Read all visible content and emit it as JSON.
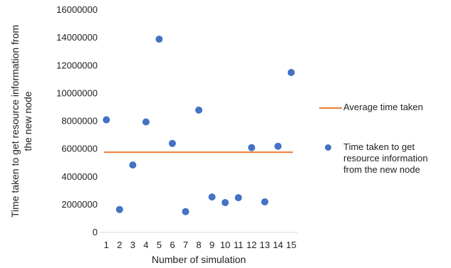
{
  "chart_data": {
    "type": "scatter",
    "xlabel": "Number of simulation",
    "ylabel_lines": [
      "Time taken to get resource information from",
      "the new node"
    ],
    "ylim": [
      0,
      16000000
    ],
    "yticks": [
      0,
      2000000,
      4000000,
      6000000,
      8000000,
      10000000,
      12000000,
      14000000,
      16000000
    ],
    "ytick_labels": [
      "0",
      "2000000",
      "4000000",
      "6000000",
      "8000000",
      "10000000",
      "12000000",
      "14000000",
      "16000000"
    ],
    "categories": [
      "1",
      "2",
      "3",
      "4",
      "5",
      "6",
      "7",
      "8",
      "9",
      "10",
      "11",
      "12",
      "13",
      "14",
      "15"
    ],
    "series": [
      {
        "name": "Time taken to get resource information from the new node",
        "kind": "points",
        "color": "#4472C4",
        "values": [
          8100000,
          1650000,
          4850000,
          7950000,
          13900000,
          6400000,
          1500000,
          8800000,
          2550000,
          2150000,
          2500000,
          6100000,
          2200000,
          6200000,
          11500000
        ]
      },
      {
        "name": "Average time taken",
        "kind": "line",
        "color": "#ED7D31",
        "value": 5770000
      }
    ],
    "legend_position": "right",
    "grid": false
  }
}
